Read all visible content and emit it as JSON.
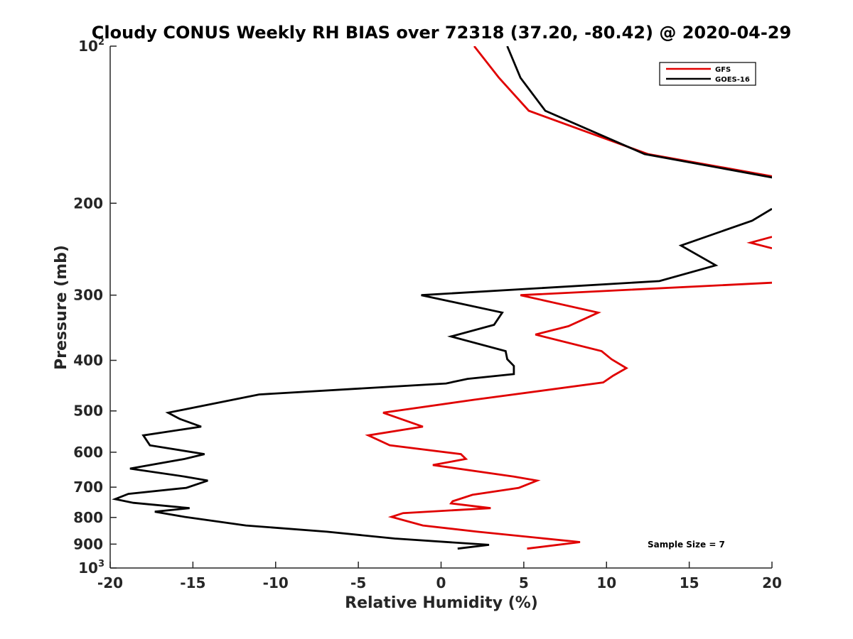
{
  "chart_data": {
    "type": "line",
    "title": "Cloudy CONUS Weekly RH BIAS over 72318 (37.20, -80.42) @ 2020-04-29",
    "xlabel": "Relative Humidity (%)",
    "ylabel": "Pressure (mb)",
    "xlim": [
      -20,
      20
    ],
    "ylim": [
      100,
      1000
    ],
    "yscale": "log",
    "y_reversed": true,
    "grid": false,
    "x_ticks": [
      {
        "value": -20,
        "label": "-20"
      },
      {
        "value": -15,
        "label": "-15"
      },
      {
        "value": -10,
        "label": "-10"
      },
      {
        "value": -5,
        "label": "-5"
      },
      {
        "value": 0,
        "label": "0"
      },
      {
        "value": 5,
        "label": "5"
      },
      {
        "value": 10,
        "label": "10"
      },
      {
        "value": 15,
        "label": "15"
      },
      {
        "value": 20,
        "label": "20"
      }
    ],
    "y_ticks": [
      {
        "value": 100,
        "base": "10",
        "exp": "2"
      },
      {
        "value": 200,
        "label": "200"
      },
      {
        "value": 300,
        "label": "300"
      },
      {
        "value": 400,
        "label": "400"
      },
      {
        "value": 500,
        "label": "500"
      },
      {
        "value": 600,
        "label": "600"
      },
      {
        "value": 700,
        "label": "700"
      },
      {
        "value": 800,
        "label": "800"
      },
      {
        "value": 900,
        "label": "900"
      },
      {
        "value": 1000,
        "base": "10",
        "exp": "3"
      }
    ],
    "legend": {
      "position": "top-right",
      "entries": [
        "GFS",
        "GOES-16"
      ]
    },
    "annotation": "Sample Size = 7",
    "series": [
      {
        "name": "GFS",
        "color": "#e00000",
        "segments": [
          [
            [
              2.0,
              100
            ],
            [
              3.5,
              115
            ],
            [
              5.3,
              133
            ],
            [
              12.5,
              161
            ],
            [
              20.2,
              178
            ]
          ],
          [
            [
              20.0,
              232
            ],
            [
              18.7,
              238
            ],
            [
              20.0,
              244
            ]
          ],
          [
            [
              20.0,
              284
            ],
            [
              4.8,
              300
            ],
            [
              9.5,
              324
            ],
            [
              7.7,
              344
            ],
            [
              5.7,
              357
            ],
            [
              9.7,
              384
            ],
            [
              10.3,
              398
            ],
            [
              11.2,
              414
            ],
            [
              10.4,
              428
            ],
            [
              9.8,
              441
            ],
            [
              2.0,
              476
            ],
            [
              -3.5,
              504
            ],
            [
              -1.1,
              536
            ],
            [
              -4.4,
              557
            ],
            [
              -3.1,
              582
            ],
            [
              1.2,
              605
            ],
            [
              1.5,
              618
            ],
            [
              -0.5,
              635
            ],
            [
              4.4,
              668
            ],
            [
              5.8,
              680
            ],
            [
              4.7,
              702
            ],
            [
              1.9,
              724
            ],
            [
              0.7,
              745
            ],
            [
              0.6,
              752
            ],
            [
              3.0,
              768
            ],
            [
              -2.3,
              785
            ],
            [
              -3.0,
              798
            ],
            [
              -1.1,
              829
            ],
            [
              2.2,
              852
            ],
            [
              8.4,
              892
            ],
            [
              5.2,
              918
            ]
          ]
        ]
      },
      {
        "name": "GOES-16",
        "color": "#000000",
        "segments": [
          [
            [
              4.0,
              100
            ],
            [
              4.8,
              115
            ],
            [
              6.3,
              133
            ],
            [
              12.3,
              161
            ],
            [
              20.2,
              179
            ]
          ],
          [
            [
              20.0,
              205
            ],
            [
              18.8,
              216
            ],
            [
              14.5,
              241
            ],
            [
              16.6,
              263
            ],
            [
              13.2,
              282
            ],
            [
              -1.2,
              300
            ],
            [
              3.7,
              324
            ],
            [
              3.2,
              342
            ],
            [
              0.6,
              360
            ],
            [
              3.9,
              384
            ],
            [
              4.0,
              398
            ],
            [
              4.4,
              410
            ],
            [
              4.4,
              425
            ],
            [
              1.6,
              434
            ],
            [
              0.3,
              443
            ],
            [
              -11.0,
              465
            ],
            [
              -16.5,
              504
            ],
            [
              -15.8,
              518
            ],
            [
              -14.5,
              536
            ],
            [
              -18.0,
              557
            ],
            [
              -17.6,
              582
            ],
            [
              -14.3,
              605
            ],
            [
              -15.5,
              618
            ],
            [
              -18.8,
              645
            ],
            [
              -15.5,
              668
            ],
            [
              -14.1,
              680
            ],
            [
              -15.4,
              702
            ],
            [
              -18.9,
              721
            ],
            [
              -19.7,
              738
            ],
            [
              -18.6,
              750
            ],
            [
              -15.2,
              768
            ],
            [
              -17.3,
              780
            ],
            [
              -15.5,
              798
            ],
            [
              -11.8,
              829
            ],
            [
              -6.9,
              852
            ],
            [
              -2.8,
              878
            ],
            [
              2.9,
              903
            ],
            [
              1.0,
              918
            ]
          ]
        ]
      }
    ]
  }
}
